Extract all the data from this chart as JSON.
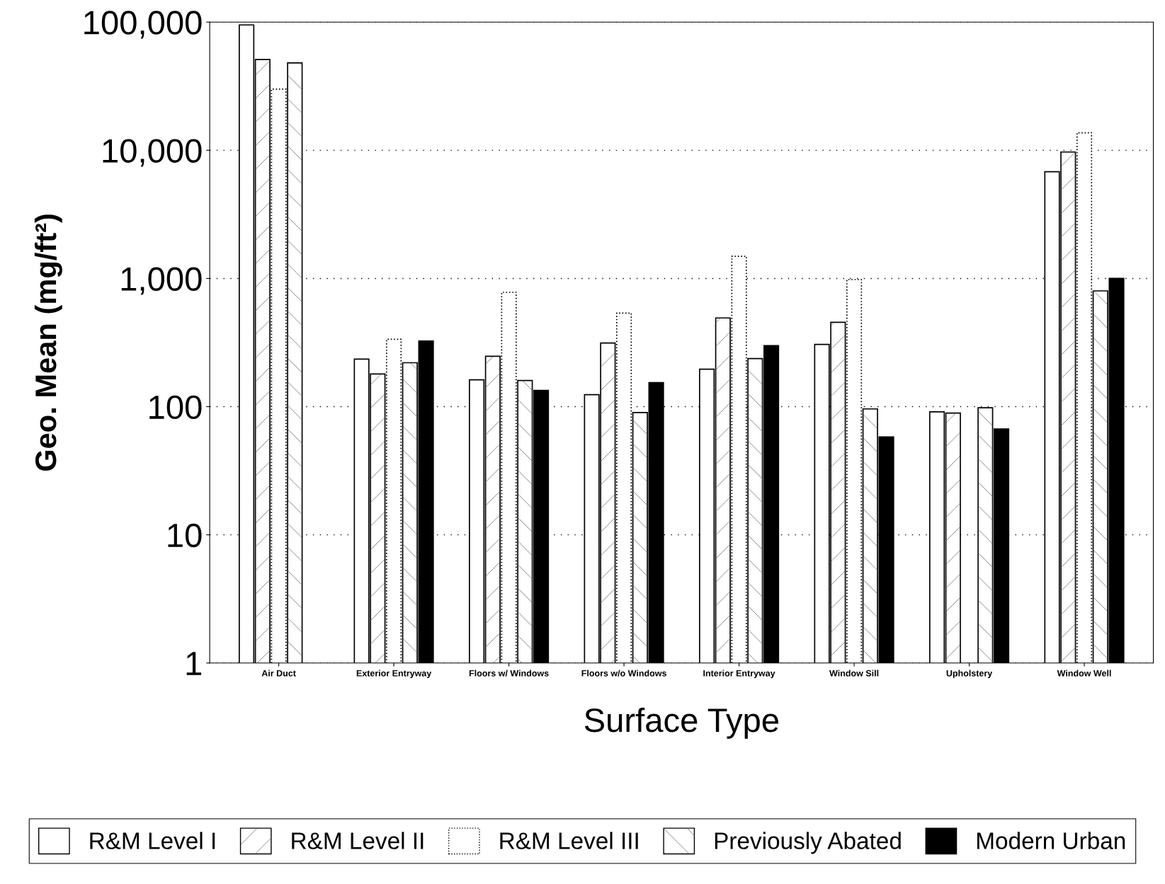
{
  "chart_data": {
    "type": "bar",
    "xlabel": "Surface Type",
    "ylabel": "Geo. Mean (mg/ft²)",
    "categories": [
      "Air Duct",
      "Exterior Entryway",
      "Floors w/ Windows",
      "Floors w/o Windows",
      "Interior Entryway",
      "Window Sill",
      "Upholstery",
      "Window Well"
    ],
    "series": [
      {
        "name": "R&M Level I",
        "color": "#ffffff",
        "values": [
          95000,
          235,
          162,
          124,
          196,
          306,
          91,
          6800
        ]
      },
      {
        "name": "R&M Level II",
        "color": "#ffffff",
        "values": [
          51000,
          180,
          247,
          314,
          492,
          455,
          89,
          9700
        ]
      },
      {
        "name": "R&M Level III",
        "color": "#ffffff",
        "values": [
          30000,
          335,
          780,
          537,
          1490,
          980,
          null,
          13700
        ]
      },
      {
        "name": "Previously Abated",
        "color": "#ffffff",
        "values": [
          48000,
          220,
          160,
          90,
          237,
          96,
          98,
          800
        ]
      },
      {
        "name": "Modern Urban",
        "color": "#000000",
        "values": [
          null,
          325,
          134,
          154,
          299,
          58,
          67,
          1000
        ]
      }
    ],
    "log": true,
    "ylim": [
      1,
      100000
    ],
    "yticks": [
      1,
      10,
      100,
      {
        "value": 1000,
        "label": "1,000"
      },
      {
        "value": 10000,
        "label": "10,000"
      },
      {
        "value": 100000,
        "label": "100,000"
      }
    ],
    "grid": "y",
    "legend": "bottom"
  }
}
